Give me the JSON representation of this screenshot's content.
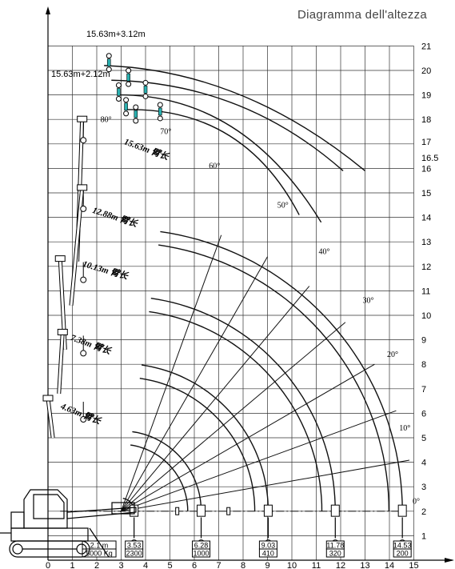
{
  "title": "Diagramma dell'altezza",
  "chart_data": {
    "type": "diagram",
    "x_ticks": [
      0,
      1,
      2,
      3,
      4,
      5,
      6,
      7,
      8,
      9,
      10,
      11,
      12,
      13,
      14,
      15
    ],
    "y_ticks": [
      "1",
      "2",
      "3",
      "4",
      "5",
      "6",
      "7",
      "8",
      "9",
      "10",
      "11",
      "12",
      "13",
      "14",
      "15",
      "16",
      "16.5",
      "17",
      "18",
      "19",
      "20",
      "21"
    ],
    "jib_labels": [
      "15.63m+3.12m",
      "15.63m+2.12m"
    ],
    "boom_labels": [
      "15.63m 臂长",
      "12.88m 臂长",
      "10.13m 臂长",
      "7.38m 臂长",
      "4.63m 臂长"
    ],
    "angle_labels": [
      "80°",
      "70°",
      "60°",
      "50°",
      "40°",
      "30°",
      "20°",
      "10°",
      "0°"
    ],
    "load_table": [
      {
        "radius": "2.1 m",
        "load": "5000 Kg"
      },
      {
        "radius": "3.53",
        "load": "2300"
      },
      {
        "radius": "6.28",
        "load": "1000"
      },
      {
        "radius": "9.03",
        "load": "410"
      },
      {
        "radius": "11.78",
        "load": "320"
      },
      {
        "radius": "14.53",
        "load": "200"
      }
    ]
  }
}
